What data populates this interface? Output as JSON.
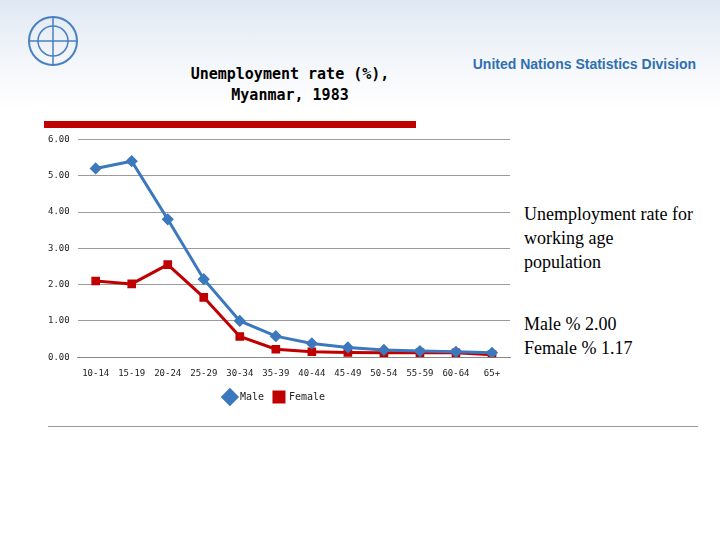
{
  "header": "United Nations Statistics Division",
  "chart_data": {
    "type": "line",
    "title": [
      "Unemployment rate (%),",
      "Myanmar, 1983"
    ],
    "categories": [
      "10-14",
      "15-19",
      "20-24",
      "25-29",
      "30-34",
      "35-39",
      "40-44",
      "45-49",
      "50-54",
      "55-59",
      "60-64",
      "65+"
    ],
    "series": [
      {
        "name": "Male",
        "color": "#3b78bd",
        "marker": "diamond",
        "values": [
          5.2,
          5.4,
          3.8,
          2.15,
          1.0,
          0.58,
          0.38,
          0.27,
          0.2,
          0.17,
          0.15,
          0.12
        ]
      },
      {
        "name": "Female",
        "color": "#c00000",
        "marker": "square",
        "values": [
          2.1,
          2.02,
          2.55,
          1.65,
          0.57,
          0.22,
          0.15,
          0.13,
          0.12,
          0.12,
          0.12,
          0.07
        ]
      }
    ],
    "ylim": [
      0,
      6
    ],
    "yticks": [
      {
        "value": 0,
        "label": "0.00"
      },
      {
        "value": 1,
        "label": "1.00"
      },
      {
        "value": 2,
        "label": "2.00"
      },
      {
        "value": 3,
        "label": "3.00"
      },
      {
        "value": 4,
        "label": "4.00"
      },
      {
        "value": 5,
        "label": "5.00"
      },
      {
        "value": 6,
        "label": "6.00"
      }
    ],
    "grid": true,
    "legend": "bottom",
    "annotations": [
      "Unemployment rate for working age population",
      "Male % 2.00",
      "Female % 1.17"
    ]
  }
}
